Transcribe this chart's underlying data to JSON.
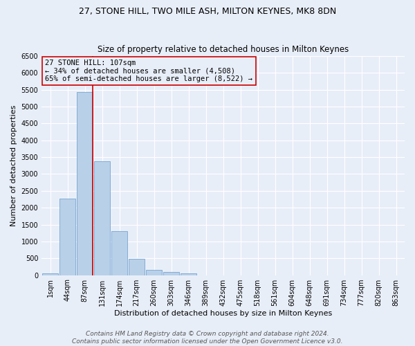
{
  "title": "27, STONE HILL, TWO MILE ASH, MILTON KEYNES, MK8 8DN",
  "subtitle": "Size of property relative to detached houses in Milton Keynes",
  "xlabel": "Distribution of detached houses by size in Milton Keynes",
  "ylabel": "Number of detached properties",
  "footer_line1": "Contains HM Land Registry data © Crown copyright and database right 2024.",
  "footer_line2": "Contains public sector information licensed under the Open Government Licence v3.0.",
  "bin_labels": [
    "1sqm",
    "44sqm",
    "87sqm",
    "131sqm",
    "174sqm",
    "217sqm",
    "260sqm",
    "303sqm",
    "346sqm",
    "389sqm",
    "432sqm",
    "475sqm",
    "518sqm",
    "561sqm",
    "604sqm",
    "648sqm",
    "691sqm",
    "734sqm",
    "777sqm",
    "820sqm",
    "863sqm"
  ],
  "bar_values": [
    60,
    2280,
    5440,
    3380,
    1300,
    480,
    160,
    90,
    60,
    0,
    0,
    0,
    0,
    0,
    0,
    0,
    0,
    0,
    0,
    0,
    0
  ],
  "bar_color": "#b8d0e8",
  "bar_edge_color": "#6699cc",
  "vline_index": 2,
  "vline_color": "#cc0000",
  "annotation_title": "27 STONE HILL: 107sqm",
  "annotation_line1": "← 34% of detached houses are smaller (4,508)",
  "annotation_line2": "65% of semi-detached houses are larger (8,522) →",
  "annotation_box_color": "#cc0000",
  "ylim": [
    0,
    6500
  ],
  "yticks": [
    0,
    500,
    1000,
    1500,
    2000,
    2500,
    3000,
    3500,
    4000,
    4500,
    5000,
    5500,
    6000,
    6500
  ],
  "bg_color": "#e8eef8",
  "grid_color": "#ffffff",
  "title_fontsize": 9,
  "subtitle_fontsize": 8.5,
  "axis_label_fontsize": 8,
  "tick_fontsize": 7,
  "annotation_fontsize": 7.5,
  "footer_fontsize": 6.5
}
